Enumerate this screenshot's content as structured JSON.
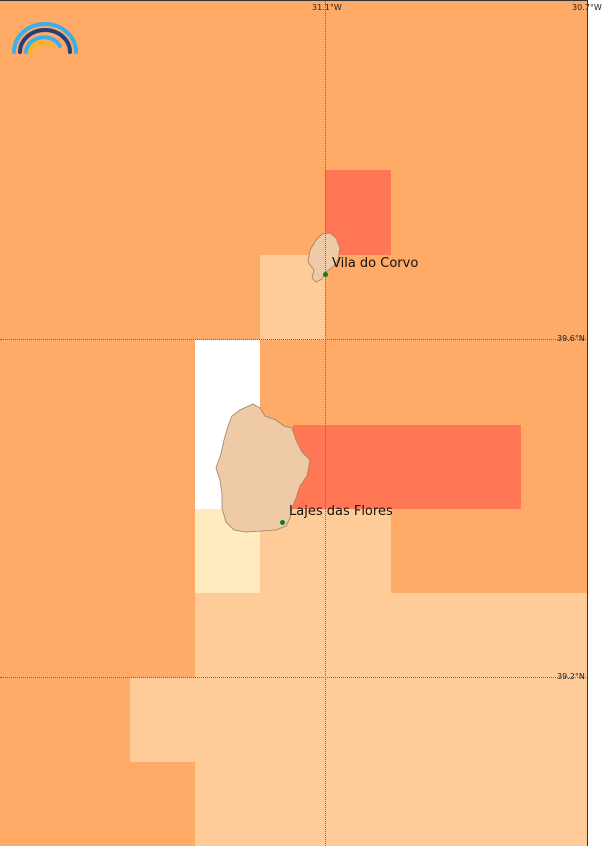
{
  "map": {
    "colors": {
      "dark_orange": "#ffaa66",
      "light_orange": "#ffcc99",
      "red_orange": "#ff7755",
      "pale_yellow": "#ffebbf",
      "white": "#ffffff",
      "island": "#eecaa6",
      "island_outline": "#a08060"
    },
    "grid": {
      "longitudes": [
        "31.1°W",
        "30.7°W"
      ],
      "latitudes": [
        "39.6°N",
        "39.2°N"
      ]
    },
    "places": [
      {
        "name": "Vila do Corvo"
      },
      {
        "name": "Lajes das Flores"
      }
    ],
    "logo_icon": "rainbow-arc-logo-icon"
  }
}
